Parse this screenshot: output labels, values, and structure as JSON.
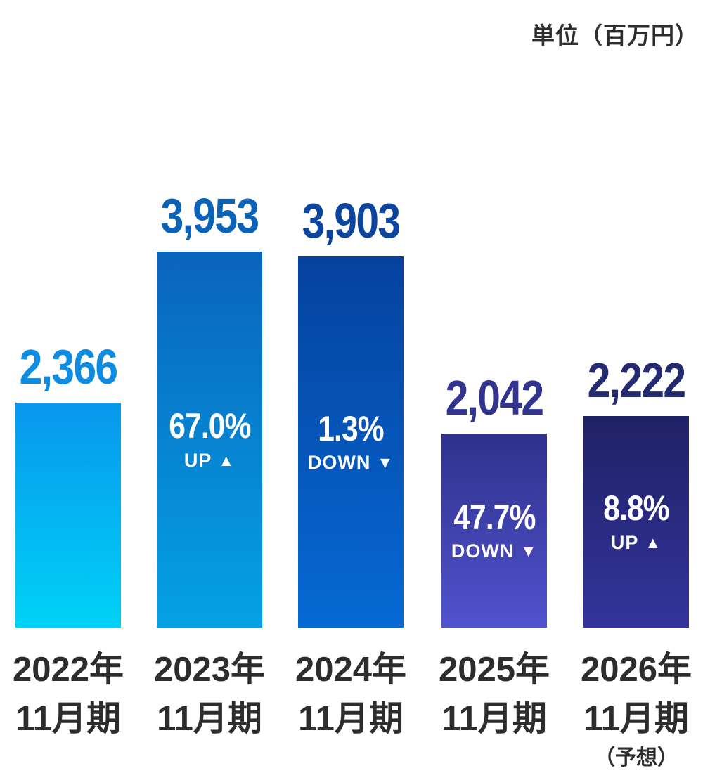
{
  "unit_label": "単位（百万円）",
  "colors": {
    "background": "#ffffff",
    "axis_label": "#2d2d2d",
    "in_bar_text": "#ffffff"
  },
  "chart_data": {
    "type": "bar",
    "title": "",
    "unit_label": "単位（百万円）",
    "xlabel": "",
    "ylabel": "",
    "ylim": [
      0,
      3953
    ],
    "grid": false,
    "legend": "none",
    "categories": [
      "2022年11月期",
      "2023年11月期",
      "2024年11月期",
      "2025年11月期",
      "2026年11月期（予想）"
    ],
    "values": [
      2366,
      3953,
      3903,
      2042,
      2222
    ],
    "bars": [
      {
        "category_line1": "2022年",
        "category_line2": "11月期",
        "category_line3": "",
        "value": 2366,
        "value_label": "2,366",
        "value_label_color": "#0d8ce2",
        "bar_gradient_top": "#0897ec",
        "bar_gradient_bottom": "#00d2f7",
        "change_percent": "",
        "change_direction": "",
        "change_arrow": ""
      },
      {
        "category_line1": "2023年",
        "category_line2": "11月期",
        "category_line3": "",
        "value": 3953,
        "value_label": "3,953",
        "value_label_color": "#0b63b8",
        "bar_gradient_top": "#0a64bc",
        "bar_gradient_bottom": "#04a2e4",
        "change_percent": "67.0%",
        "change_direction": "UP",
        "change_arrow": "▲"
      },
      {
        "category_line1": "2024年",
        "category_line2": "11月期",
        "category_line3": "",
        "value": 3903,
        "value_label": "3,903",
        "value_label_color": "#0c459e",
        "bar_gradient_top": "#05429e",
        "bar_gradient_bottom": "#0669d4",
        "change_percent": "1.3%",
        "change_direction": "DOWN",
        "change_arrow": "▼"
      },
      {
        "category_line1": "2025年",
        "category_line2": "11月期",
        "category_line3": "",
        "value": 2042,
        "value_label": "2,042",
        "value_label_color": "#32338e",
        "bar_gradient_top": "#30318c",
        "bar_gradient_bottom": "#5053ce",
        "change_percent": "47.7%",
        "change_direction": "DOWN",
        "change_arrow": "▼"
      },
      {
        "category_line1": "2026年",
        "category_line2": "11月期",
        "category_line3": "（予想）",
        "value": 2222,
        "value_label": "2,222",
        "value_label_color": "#232a70",
        "bar_gradient_top": "#202165",
        "bar_gradient_bottom": "#34349c",
        "change_percent": "8.8%",
        "change_direction": "UP",
        "change_arrow": "▲"
      }
    ]
  }
}
